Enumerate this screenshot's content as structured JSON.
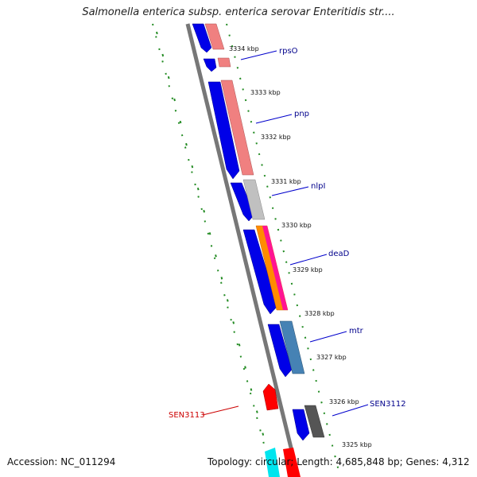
{
  "title": "Salmonella enterica subsp. enterica serovar Enteritidis str....",
  "footer": {
    "accession": "Accession: NC_011294",
    "summary": "Topology: circular; Length: 4,685,848 bp; Genes: 4,312"
  },
  "colors": {
    "backbone": "#777777",
    "gc_ticks": "#228b22",
    "forward_strand_cds": "#0000e8",
    "label_forward": "#00008b",
    "label_reverse": "#cc0000"
  },
  "kbp_ticks": [
    "3334 kbp",
    "3333 kbp",
    "3332 kbp",
    "3331 kbp",
    "3330 kbp",
    "3329 kbp",
    "3328 kbp",
    "3327 kbp",
    "3326 kbp",
    "3325 kbp"
  ],
  "genes": [
    {
      "label": "rpsO",
      "color": "#f08080",
      "strand": "outer"
    },
    {
      "label": "pnp",
      "color": "#f08080",
      "strand": "outer"
    },
    {
      "label": "nlpI",
      "color": "#c0c0c0",
      "strand": "outer"
    },
    {
      "label": "deaD",
      "color": "#ff8c00",
      "strand": "outer"
    },
    {
      "label": "mtr",
      "color": "#4682b4",
      "strand": "outer"
    },
    {
      "label": "SEN3112",
      "color": "#555555",
      "strand": "outer"
    },
    {
      "label": "SEN3113",
      "color": "#ff0000",
      "strand": "inner"
    }
  ]
}
